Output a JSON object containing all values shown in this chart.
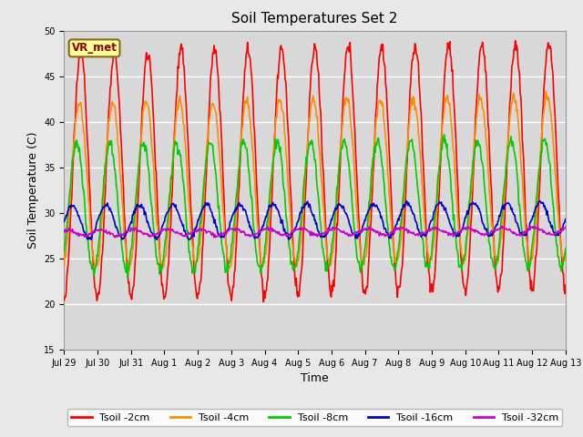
{
  "title": "Soil Temperatures Set 2",
  "xlabel": "Time",
  "ylabel": "Soil Temperature (C)",
  "ylim": [
    15,
    50
  ],
  "yticks": [
    15,
    20,
    25,
    30,
    35,
    40,
    45,
    50
  ],
  "annotation_text": "VR_met",
  "annotation_color": "#8B0000",
  "annotation_bg": "#FFFF99",
  "annotation_border": "#8B6914",
  "fig_bg": "#E8E8E8",
  "plot_bg": "#D8D8D8",
  "series_keys": [
    "Tsoil -2cm",
    "Tsoil -4cm",
    "Tsoil -8cm",
    "Tsoil -16cm",
    "Tsoil -32cm"
  ],
  "series_colors": [
    "#FF0000",
    "#FF8C00",
    "#00CC00",
    "#0000CC",
    "#CC00CC"
  ],
  "series_lw": [
    1.2,
    1.2,
    1.2,
    1.2,
    1.2
  ],
  "x_tick_labels": [
    "Jul 29",
    "Jul 30",
    "Jul 31",
    "Aug 1",
    "Aug 2",
    "Aug 3",
    "Aug 4",
    "Aug 5",
    "Aug 6",
    "Aug 7",
    "Aug 8",
    "Aug 9",
    "Aug 10",
    "Aug 11",
    "Aug 12",
    "Aug 13"
  ],
  "n_days": 15,
  "pts_per_day": 48,
  "params_2cm": {
    "base": 34.0,
    "amp": 13.5,
    "phase": -1.5708,
    "noise": 0.4
  },
  "params_4cm": {
    "base": 33.0,
    "amp": 9.0,
    "phase": -1.2708,
    "noise": 0.3
  },
  "params_8cm": {
    "base": 30.5,
    "amp": 7.0,
    "phase": -0.7708,
    "noise": 0.3
  },
  "params_16cm": {
    "base": 29.0,
    "amp": 1.8,
    "phase": 0.0,
    "noise": 0.15
  },
  "params_32cm": {
    "base": 27.8,
    "amp": 0.35,
    "phase": 1.0,
    "noise": 0.1
  },
  "title_fontsize": 11,
  "label_fontsize": 9,
  "tick_fontsize": 7,
  "legend_fontsize": 8
}
